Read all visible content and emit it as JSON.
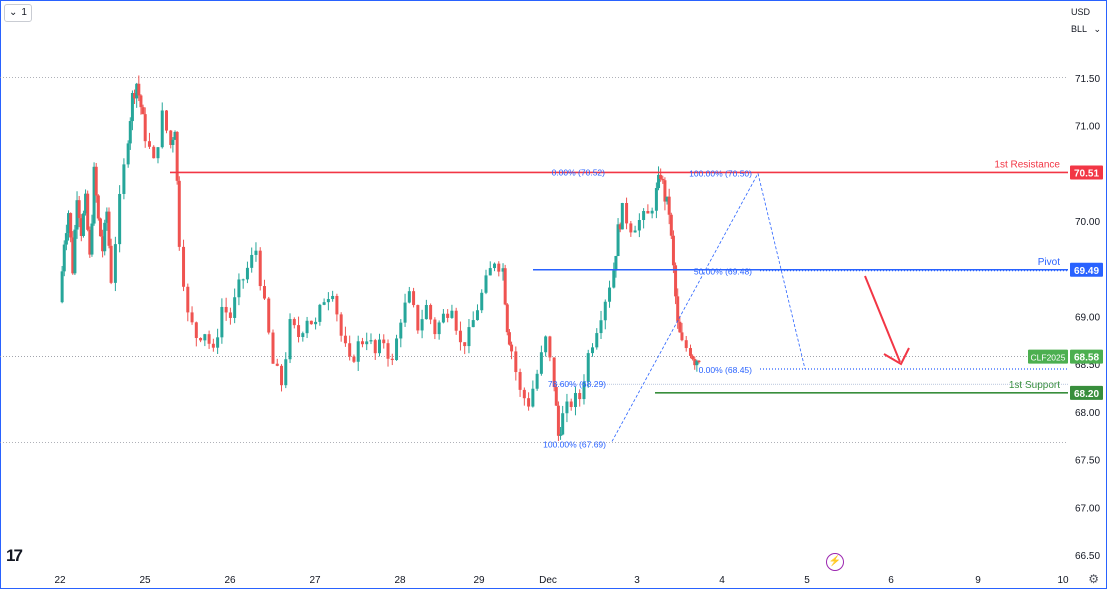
{
  "header": {
    "interval_menu": "1",
    "currency": "USD",
    "unit": "BLL"
  },
  "colors": {
    "up": "#26a69a",
    "down": "#ef5350",
    "resistance": "#f23645",
    "pivot": "#2962ff",
    "support": "#388e3c",
    "symbol_tag": "#4caf50",
    "fib": "#2962ff",
    "arrow": "#f23645"
  },
  "chart_data": {
    "type": "candlestick",
    "symbol_tag": "CLF2025",
    "last_price": "68.58",
    "ylim": [
      66.5,
      71.5
    ],
    "y_ticks": [
      "71.50",
      "71.00",
      "70.50",
      "70.00",
      "69.50",
      "69.00",
      "68.50",
      "68.00",
      "67.50",
      "67.00",
      "66.50"
    ],
    "x_ticks": [
      "22",
      "25",
      "26",
      "27",
      "28",
      "29",
      "Dec",
      "3",
      "4",
      "5",
      "6",
      "9",
      "10"
    ],
    "levels": [
      {
        "name": "1st Resistance",
        "value": 70.51,
        "label": "70.51"
      },
      {
        "name": "Pivot",
        "value": 69.49,
        "label": "69.49"
      },
      {
        "name": "1st Support",
        "value": 68.2,
        "label": "68.20"
      }
    ],
    "fib_left": [
      {
        "text": "0.00% (70.52)",
        "value": 70.52
      },
      {
        "text": "78.60% (68.29)",
        "value": 68.29
      },
      {
        "text": "100.00% (67.69)",
        "value": 67.69
      }
    ],
    "fib_right": [
      {
        "text": "100.00% (70.50)",
        "value": 70.5
      },
      {
        "text": "50.00% (69.48)",
        "value": 69.48
      },
      {
        "text": "0.00% (68.45)",
        "value": 68.45
      }
    ],
    "price_path": [
      [
        0,
        69.15
      ],
      [
        0.05,
        69.8
      ],
      [
        0.1,
        70.1
      ],
      [
        0.15,
        69.5
      ],
      [
        0.2,
        70.3
      ],
      [
        0.25,
        69.9
      ],
      [
        0.3,
        70.2
      ],
      [
        0.35,
        69.6
      ],
      [
        0.4,
        70.5
      ],
      [
        0.45,
        70.0
      ],
      [
        0.5,
        69.7
      ],
      [
        0.55,
        70.1
      ],
      [
        0.6,
        69.4
      ],
      [
        0.7,
        70.2
      ],
      [
        0.8,
        70.9
      ],
      [
        0.85,
        71.3
      ],
      [
        0.9,
        71.45
      ],
      [
        0.95,
        71.2
      ],
      [
        1.0,
        70.9
      ],
      [
        1.1,
        70.6
      ],
      [
        1.2,
        71.1
      ],
      [
        1.3,
        70.8
      ],
      [
        1.35,
        71.0
      ],
      [
        1.4,
        69.8
      ],
      [
        1.5,
        69.0
      ],
      [
        1.6,
        68.8
      ],
      [
        1.7,
        68.85
      ],
      [
        1.8,
        68.6
      ],
      [
        1.9,
        69.1
      ],
      [
        2.0,
        69.0
      ],
      [
        2.1,
        69.3
      ],
      [
        2.2,
        69.5
      ],
      [
        2.3,
        69.7
      ],
      [
        2.4,
        69.1
      ],
      [
        2.5,
        68.5
      ],
      [
        2.6,
        68.3
      ],
      [
        2.7,
        68.9
      ],
      [
        2.8,
        68.8
      ],
      [
        2.9,
        69.0
      ],
      [
        3.0,
        68.9
      ],
      [
        3.1,
        69.2
      ],
      [
        3.2,
        69.3
      ],
      [
        3.3,
        68.8
      ],
      [
        3.4,
        68.5
      ],
      [
        3.5,
        68.7
      ],
      [
        3.6,
        68.8
      ],
      [
        3.7,
        68.6
      ],
      [
        3.8,
        68.75
      ],
      [
        3.9,
        68.5
      ],
      [
        4.0,
        69.0
      ],
      [
        4.1,
        69.2
      ],
      [
        4.2,
        68.9
      ],
      [
        4.3,
        69.1
      ],
      [
        4.4,
        68.85
      ],
      [
        4.5,
        69.0
      ],
      [
        4.6,
        69.15
      ],
      [
        4.7,
        68.7
      ],
      [
        4.8,
        68.8
      ],
      [
        4.9,
        69.1
      ],
      [
        5.0,
        69.35
      ],
      [
        5.1,
        69.6
      ],
      [
        5.2,
        69.5
      ],
      [
        5.25,
        68.9
      ],
      [
        5.3,
        68.65
      ],
      [
        5.4,
        68.2
      ],
      [
        5.5,
        68.1
      ],
      [
        5.6,
        68.4
      ],
      [
        5.7,
        68.75
      ],
      [
        5.8,
        68.3
      ],
      [
        5.85,
        67.75
      ],
      [
        5.9,
        67.95
      ],
      [
        6.0,
        68.1
      ],
      [
        6.1,
        68.15
      ],
      [
        6.2,
        68.6
      ],
      [
        6.3,
        68.9
      ],
      [
        6.4,
        69.2
      ],
      [
        6.5,
        69.5
      ],
      [
        6.55,
        69.9
      ],
      [
        6.6,
        70.1
      ],
      [
        6.7,
        69.95
      ],
      [
        6.8,
        70.0
      ],
      [
        6.9,
        70.05
      ],
      [
        7.0,
        70.3
      ],
      [
        7.05,
        70.5
      ],
      [
        7.1,
        70.25
      ],
      [
        7.15,
        70.1
      ],
      [
        7.2,
        69.5
      ],
      [
        7.25,
        68.9
      ],
      [
        7.3,
        68.7
      ],
      [
        7.4,
        68.65
      ],
      [
        7.45,
        68.55
      ],
      [
        7.5,
        68.58
      ]
    ]
  }
}
